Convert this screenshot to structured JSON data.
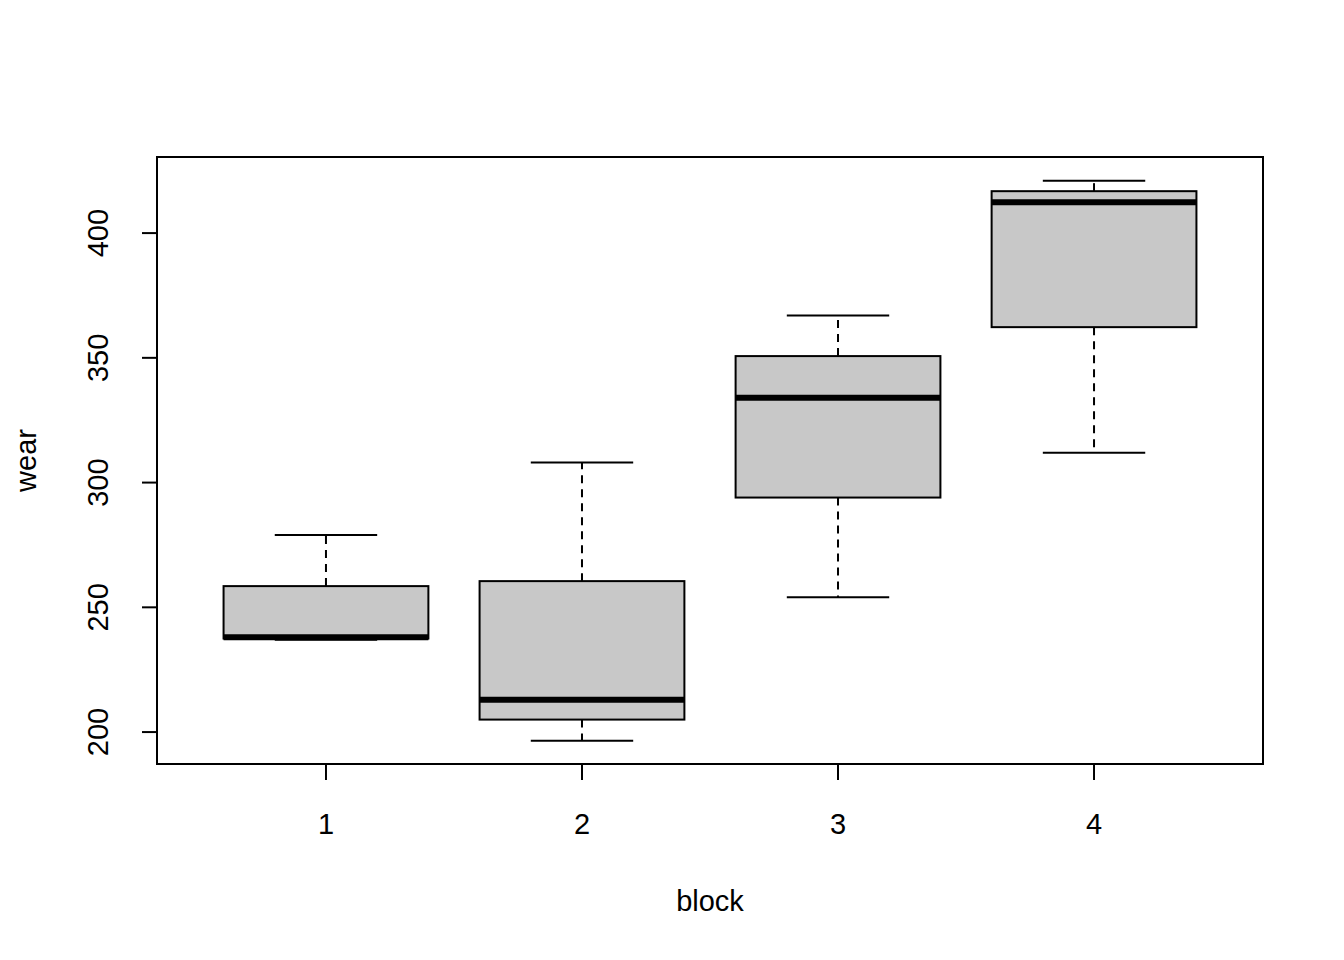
{
  "chart_data": {
    "type": "boxplot",
    "x_label": "block",
    "y_label": "wear",
    "categories": [
      "1",
      "2",
      "3",
      "4"
    ],
    "boxes": [
      {
        "min": 237,
        "q1": 237.5,
        "median": 238,
        "q3": 258.5,
        "max": 279
      },
      {
        "min": 196.5,
        "q1": 205,
        "median": 213,
        "q3": 260.5,
        "max": 308
      },
      {
        "min": 254,
        "q1": 294,
        "median": 334,
        "q3": 350.7,
        "max": 367
      },
      {
        "min": 312,
        "q1": 362.3,
        "median": 412.4,
        "q3": 416.8,
        "max": 421
      }
    ],
    "color": "#c8c8c8",
    "ylim": [
      187.2,
      430.5
    ],
    "yticks": [
      200,
      250,
      300,
      350,
      400
    ]
  }
}
